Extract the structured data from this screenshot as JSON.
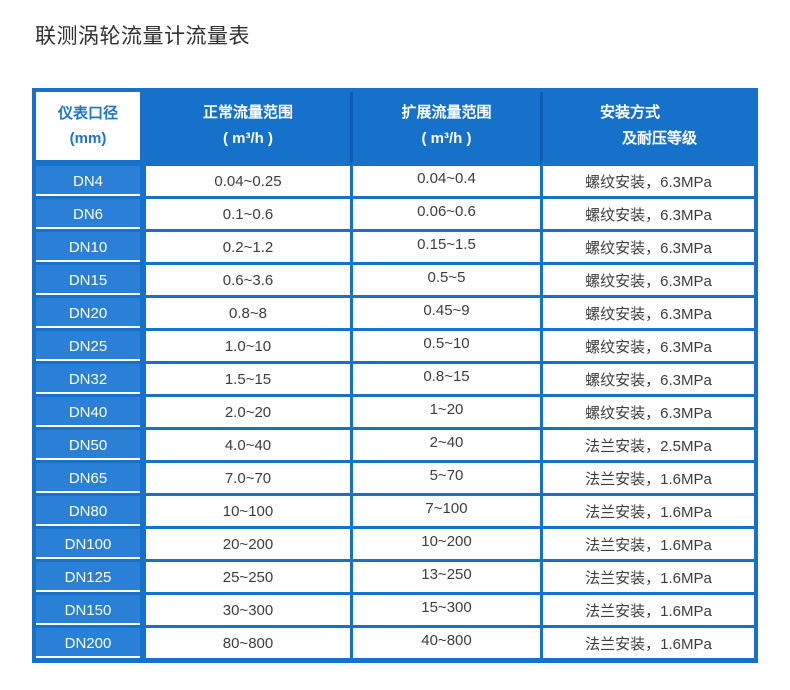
{
  "page": {
    "title": "联测涡轮流量计流量表"
  },
  "colors": {
    "base_blue": "#1571c9",
    "column1_blue": "#2980d6",
    "header_divider_blue": "#0b5db3",
    "header_cell1_text": "#1d74cd",
    "data_text": "#3d3d3d"
  },
  "table": {
    "headers": [
      {
        "lines": [
          "仪表口径",
          "(mm)"
        ]
      },
      {
        "lines": [
          "正常流量范围",
          "( m³/h )"
        ]
      },
      {
        "lines": [
          "扩展流量范围",
          "( m³/h )"
        ]
      },
      {
        "lines": [
          "安装方式",
          "及耐压等级"
        ]
      }
    ],
    "rows": [
      {
        "dn": "DN4",
        "normal": "0.04~0.25",
        "extended": "0.04~0.4",
        "install": "螺纹安装，6.3MPa"
      },
      {
        "dn": "DN6",
        "normal": "0.1~0.6",
        "extended": "0.06~0.6",
        "install": "螺纹安装，6.3MPa"
      },
      {
        "dn": "DN10",
        "normal": "0.2~1.2",
        "extended": "0.15~1.5",
        "install": "螺纹安装，6.3MPa"
      },
      {
        "dn": "DN15",
        "normal": "0.6~3.6",
        "extended": "0.5~5",
        "install": "螺纹安装，6.3MPa"
      },
      {
        "dn": "DN20",
        "normal": "0.8~8",
        "extended": "0.45~9",
        "install": "螺纹安装，6.3MPa"
      },
      {
        "dn": "DN25",
        "normal": "1.0~10",
        "extended": "0.5~10",
        "install": "螺纹安装，6.3MPa"
      },
      {
        "dn": "DN32",
        "normal": "1.5~15",
        "extended": "0.8~15",
        "install": "螺纹安装，6.3MPa"
      },
      {
        "dn": "DN40",
        "normal": "2.0~20",
        "extended": "1~20",
        "install": "螺纹安装，6.3MPa"
      },
      {
        "dn": "DN50",
        "normal": "4.0~40",
        "extended": "2~40",
        "install": "法兰安装，2.5MPa"
      },
      {
        "dn": "DN65",
        "normal": "7.0~70",
        "extended": "5~70",
        "install": "法兰安装，1.6MPa"
      },
      {
        "dn": "DN80",
        "normal": "10~100",
        "extended": "7~100",
        "install": "法兰安装，1.6MPa"
      },
      {
        "dn": "DN100",
        "normal": "20~200",
        "extended": "10~200",
        "install": "法兰安装，1.6MPa"
      },
      {
        "dn": "DN125",
        "normal": "25~250",
        "extended": "13~250",
        "install": "法兰安装，1.6MPa"
      },
      {
        "dn": "DN150",
        "normal": "30~300",
        "extended": "15~300",
        "install": "法兰安装，1.6MPa"
      },
      {
        "dn": "DN200",
        "normal": "80~800",
        "extended": "40~800",
        "install": "法兰安装，1.6MPa"
      }
    ]
  }
}
